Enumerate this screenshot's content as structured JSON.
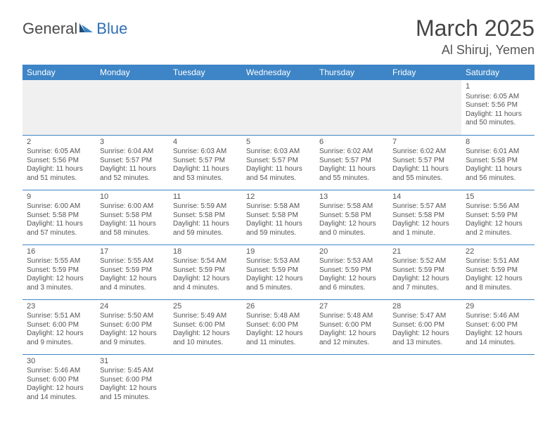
{
  "logo": {
    "part1": "General",
    "part2": "Blue"
  },
  "title": {
    "month": "March 2025",
    "location": "Al Shiruj, Yemen"
  },
  "colors": {
    "header_bg": "#3d85c6",
    "header_fg": "#ffffff",
    "text": "#555555",
    "empty_bg": "#f0f0f0",
    "rule": "#3d85c6"
  },
  "weekdays": [
    "Sunday",
    "Monday",
    "Tuesday",
    "Wednesday",
    "Thursday",
    "Friday",
    "Saturday"
  ],
  "weeks": [
    [
      null,
      null,
      null,
      null,
      null,
      null,
      {
        "n": "1",
        "sr": "Sunrise: 6:05 AM",
        "ss": "Sunset: 5:56 PM",
        "dl": "Daylight: 11 hours and 50 minutes."
      }
    ],
    [
      {
        "n": "2",
        "sr": "Sunrise: 6:05 AM",
        "ss": "Sunset: 5:56 PM",
        "dl": "Daylight: 11 hours and 51 minutes."
      },
      {
        "n": "3",
        "sr": "Sunrise: 6:04 AM",
        "ss": "Sunset: 5:57 PM",
        "dl": "Daylight: 11 hours and 52 minutes."
      },
      {
        "n": "4",
        "sr": "Sunrise: 6:03 AM",
        "ss": "Sunset: 5:57 PM",
        "dl": "Daylight: 11 hours and 53 minutes."
      },
      {
        "n": "5",
        "sr": "Sunrise: 6:03 AM",
        "ss": "Sunset: 5:57 PM",
        "dl": "Daylight: 11 hours and 54 minutes."
      },
      {
        "n": "6",
        "sr": "Sunrise: 6:02 AM",
        "ss": "Sunset: 5:57 PM",
        "dl": "Daylight: 11 hours and 55 minutes."
      },
      {
        "n": "7",
        "sr": "Sunrise: 6:02 AM",
        "ss": "Sunset: 5:57 PM",
        "dl": "Daylight: 11 hours and 55 minutes."
      },
      {
        "n": "8",
        "sr": "Sunrise: 6:01 AM",
        "ss": "Sunset: 5:58 PM",
        "dl": "Daylight: 11 hours and 56 minutes."
      }
    ],
    [
      {
        "n": "9",
        "sr": "Sunrise: 6:00 AM",
        "ss": "Sunset: 5:58 PM",
        "dl": "Daylight: 11 hours and 57 minutes."
      },
      {
        "n": "10",
        "sr": "Sunrise: 6:00 AM",
        "ss": "Sunset: 5:58 PM",
        "dl": "Daylight: 11 hours and 58 minutes."
      },
      {
        "n": "11",
        "sr": "Sunrise: 5:59 AM",
        "ss": "Sunset: 5:58 PM",
        "dl": "Daylight: 11 hours and 59 minutes."
      },
      {
        "n": "12",
        "sr": "Sunrise: 5:58 AM",
        "ss": "Sunset: 5:58 PM",
        "dl": "Daylight: 11 hours and 59 minutes."
      },
      {
        "n": "13",
        "sr": "Sunrise: 5:58 AM",
        "ss": "Sunset: 5:58 PM",
        "dl": "Daylight: 12 hours and 0 minutes."
      },
      {
        "n": "14",
        "sr": "Sunrise: 5:57 AM",
        "ss": "Sunset: 5:58 PM",
        "dl": "Daylight: 12 hours and 1 minute."
      },
      {
        "n": "15",
        "sr": "Sunrise: 5:56 AM",
        "ss": "Sunset: 5:59 PM",
        "dl": "Daylight: 12 hours and 2 minutes."
      }
    ],
    [
      {
        "n": "16",
        "sr": "Sunrise: 5:55 AM",
        "ss": "Sunset: 5:59 PM",
        "dl": "Daylight: 12 hours and 3 minutes."
      },
      {
        "n": "17",
        "sr": "Sunrise: 5:55 AM",
        "ss": "Sunset: 5:59 PM",
        "dl": "Daylight: 12 hours and 4 minutes."
      },
      {
        "n": "18",
        "sr": "Sunrise: 5:54 AM",
        "ss": "Sunset: 5:59 PM",
        "dl": "Daylight: 12 hours and 4 minutes."
      },
      {
        "n": "19",
        "sr": "Sunrise: 5:53 AM",
        "ss": "Sunset: 5:59 PM",
        "dl": "Daylight: 12 hours and 5 minutes."
      },
      {
        "n": "20",
        "sr": "Sunrise: 5:53 AM",
        "ss": "Sunset: 5:59 PM",
        "dl": "Daylight: 12 hours and 6 minutes."
      },
      {
        "n": "21",
        "sr": "Sunrise: 5:52 AM",
        "ss": "Sunset: 5:59 PM",
        "dl": "Daylight: 12 hours and 7 minutes."
      },
      {
        "n": "22",
        "sr": "Sunrise: 5:51 AM",
        "ss": "Sunset: 5:59 PM",
        "dl": "Daylight: 12 hours and 8 minutes."
      }
    ],
    [
      {
        "n": "23",
        "sr": "Sunrise: 5:51 AM",
        "ss": "Sunset: 6:00 PM",
        "dl": "Daylight: 12 hours and 9 minutes."
      },
      {
        "n": "24",
        "sr": "Sunrise: 5:50 AM",
        "ss": "Sunset: 6:00 PM",
        "dl": "Daylight: 12 hours and 9 minutes."
      },
      {
        "n": "25",
        "sr": "Sunrise: 5:49 AM",
        "ss": "Sunset: 6:00 PM",
        "dl": "Daylight: 12 hours and 10 minutes."
      },
      {
        "n": "26",
        "sr": "Sunrise: 5:48 AM",
        "ss": "Sunset: 6:00 PM",
        "dl": "Daylight: 12 hours and 11 minutes."
      },
      {
        "n": "27",
        "sr": "Sunrise: 5:48 AM",
        "ss": "Sunset: 6:00 PM",
        "dl": "Daylight: 12 hours and 12 minutes."
      },
      {
        "n": "28",
        "sr": "Sunrise: 5:47 AM",
        "ss": "Sunset: 6:00 PM",
        "dl": "Daylight: 12 hours and 13 minutes."
      },
      {
        "n": "29",
        "sr": "Sunrise: 5:46 AM",
        "ss": "Sunset: 6:00 PM",
        "dl": "Daylight: 12 hours and 14 minutes."
      }
    ],
    [
      {
        "n": "30",
        "sr": "Sunrise: 5:46 AM",
        "ss": "Sunset: 6:00 PM",
        "dl": "Daylight: 12 hours and 14 minutes."
      },
      {
        "n": "31",
        "sr": "Sunrise: 5:45 AM",
        "ss": "Sunset: 6:00 PM",
        "dl": "Daylight: 12 hours and 15 minutes."
      },
      "blank",
      "blank",
      "blank",
      "blank",
      "blank"
    ]
  ]
}
